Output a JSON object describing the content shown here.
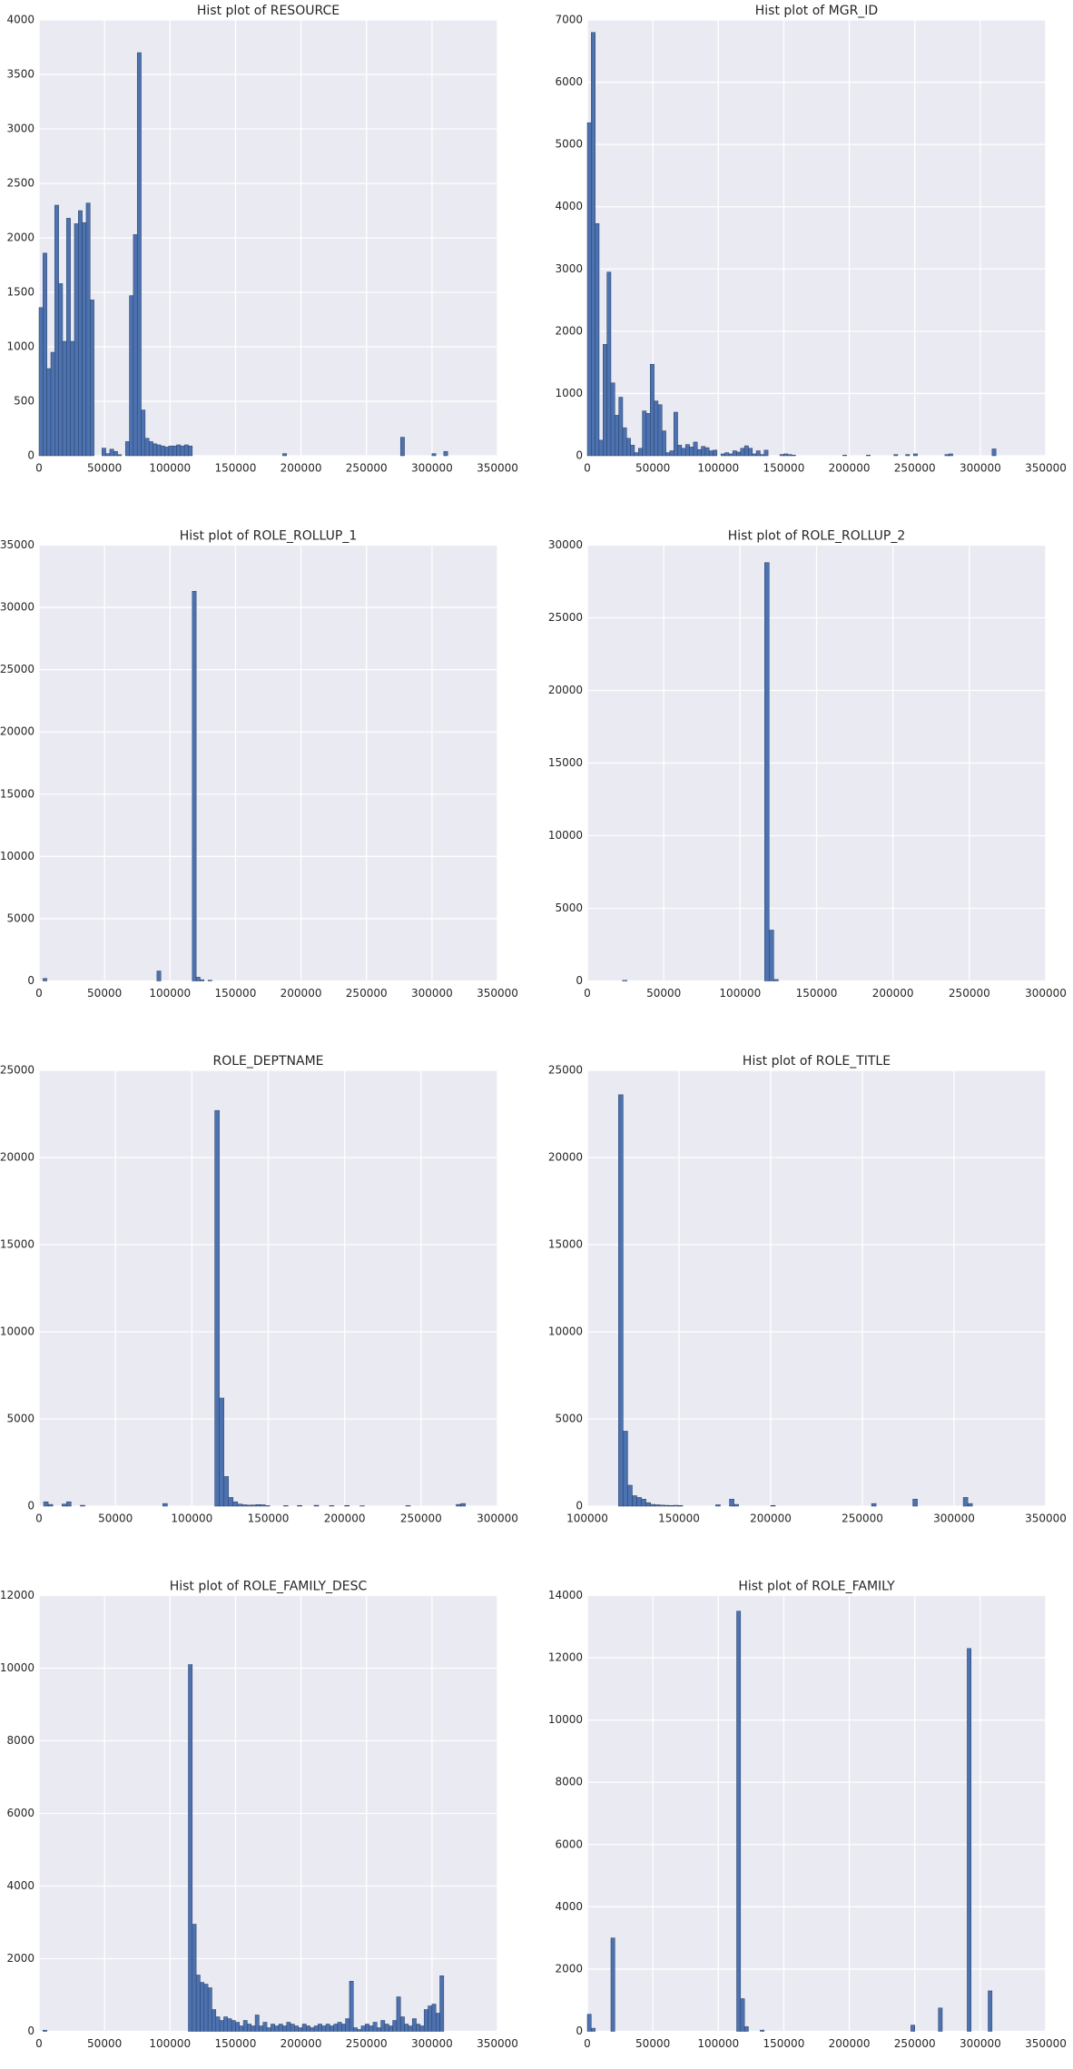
{
  "chart_data": [
    {
      "type": "histogram",
      "title": "Hist plot of RESOURCE",
      "color": "#4c72b0",
      "grid": true,
      "xlim": [
        0,
        350000
      ],
      "ylim": [
        0,
        4000
      ],
      "xticks": [
        0,
        50000,
        100000,
        150000,
        200000,
        250000,
        300000,
        350000
      ],
      "yticks": [
        0,
        500,
        1000,
        1500,
        2000,
        2500,
        3000,
        3500,
        4000
      ],
      "bins": [
        0,
        3000,
        6000,
        9000,
        12000,
        15000,
        18000,
        21000,
        24000,
        27000,
        30000,
        33000,
        36000,
        39000,
        42000,
        45000,
        48000,
        51000,
        54000,
        57000,
        60000,
        63000,
        66000,
        69000,
        72000,
        75000,
        78000,
        81000,
        84000,
        87000,
        90000,
        93000,
        96000,
        99000,
        102000,
        105000,
        108000,
        111000,
        114000,
        117000,
        186000,
        189000,
        276000,
        279000,
        300000,
        303000,
        309000,
        312000
      ],
      "values": [
        1360,
        1860,
        800,
        950,
        2300,
        1580,
        1050,
        2180,
        1050,
        2130,
        2250,
        2140,
        2320,
        1430,
        0,
        0,
        70,
        20,
        60,
        40,
        10,
        0,
        130,
        1470,
        2030,
        3700,
        420,
        160,
        130,
        110,
        100,
        90,
        80,
        90,
        90,
        100,
        90,
        100,
        90,
        0,
        20,
        0,
        170,
        0,
        20,
        0,
        40
      ]
    },
    {
      "type": "histogram",
      "title": "Hist plot of MGR_ID",
      "color": "#4c72b0",
      "grid": true,
      "xlim": [
        0,
        350000
      ],
      "ylim": [
        0,
        7000
      ],
      "xticks": [
        0,
        50000,
        100000,
        150000,
        200000,
        250000,
        300000,
        350000
      ],
      "yticks": [
        0,
        1000,
        2000,
        3000,
        4000,
        5000,
        6000,
        7000
      ],
      "bins": [
        0,
        3000,
        6000,
        9000,
        12000,
        15000,
        18000,
        21000,
        24000,
        27000,
        30000,
        33000,
        36000,
        39000,
        42000,
        45000,
        48000,
        51000,
        54000,
        57000,
        60000,
        63000,
        66000,
        69000,
        72000,
        75000,
        78000,
        81000,
        84000,
        87000,
        90000,
        93000,
        96000,
        99000,
        102000,
        105000,
        108000,
        111000,
        114000,
        117000,
        120000,
        123000,
        126000,
        129000,
        132000,
        135000,
        138000,
        147000,
        150000,
        153000,
        156000,
        159000,
        195000,
        198000,
        213000,
        216000,
        234000,
        237000,
        243000,
        246000,
        249000,
        252000,
        273000,
        276000,
        279000,
        309000,
        312000
      ],
      "values": [
        5350,
        6800,
        3730,
        250,
        1790,
        2950,
        1170,
        650,
        940,
        450,
        280,
        170,
        50,
        120,
        720,
        680,
        1470,
        880,
        820,
        400,
        50,
        80,
        700,
        170,
        120,
        180,
        140,
        220,
        100,
        150,
        130,
        80,
        90,
        0,
        30,
        50,
        30,
        80,
        60,
        120,
        160,
        120,
        30,
        80,
        20,
        90,
        0,
        20,
        30,
        20,
        10,
        0,
        10,
        0,
        10,
        0,
        20,
        0,
        20,
        0,
        30,
        0,
        20,
        30,
        0,
        110
      ]
    },
    {
      "type": "histogram",
      "title": "Hist plot of ROLE_ROLLUP_1",
      "color": "#4c72b0",
      "grid": true,
      "xlim": [
        0,
        350000
      ],
      "ylim": [
        0,
        35000
      ],
      "xticks": [
        0,
        50000,
        100000,
        150000,
        200000,
        250000,
        300000,
        350000
      ],
      "yticks": [
        0,
        5000,
        10000,
        15000,
        20000,
        25000,
        30000,
        35000
      ],
      "bins": [
        0,
        3000,
        6000,
        90000,
        93000,
        117000,
        120000,
        123000,
        126000,
        129000,
        132000,
        312000
      ],
      "values": [
        0,
        200,
        0,
        800,
        0,
        31300,
        300,
        100,
        0,
        60,
        0
      ]
    },
    {
      "type": "histogram",
      "title": "Hist plot of ROLE_ROLLUP_2",
      "color": "#4c72b0",
      "grid": true,
      "xlim": [
        0,
        300000
      ],
      "ylim": [
        0,
        30000
      ],
      "xticks": [
        0,
        50000,
        100000,
        150000,
        200000,
        250000,
        300000
      ],
      "yticks": [
        0,
        5000,
        10000,
        15000,
        20000,
        25000,
        30000
      ],
      "bins": [
        0,
        23000,
        26000,
        116000,
        119000,
        122000,
        125000,
        290000
      ],
      "values": [
        0,
        40,
        0,
        28800,
        3500,
        100,
        0
      ]
    },
    {
      "type": "histogram",
      "title": "ROLE_DEPTNAME",
      "color": "#4c72b0",
      "grid": true,
      "xlim": [
        0,
        300000
      ],
      "ylim": [
        0,
        25000
      ],
      "xticks": [
        0,
        50000,
        100000,
        150000,
        200000,
        250000,
        300000
      ],
      "yticks": [
        0,
        5000,
        10000,
        15000,
        20000,
        25000
      ],
      "bins": [
        0,
        3000,
        6000,
        9000,
        15000,
        18000,
        21000,
        27000,
        30000,
        81000,
        84000,
        115000,
        118000,
        121000,
        124000,
        127000,
        130000,
        133000,
        136000,
        139000,
        142000,
        145000,
        148000,
        151000,
        160000,
        163000,
        169000,
        172000,
        180000,
        183000,
        190000,
        193000,
        200000,
        203000,
        210000,
        213000,
        240000,
        243000,
        273000,
        276000,
        279000
      ],
      "values": [
        0,
        250,
        100,
        0,
        120,
        250,
        0,
        50,
        0,
        150,
        0,
        22700,
        6200,
        1700,
        500,
        250,
        120,
        80,
        60,
        70,
        90,
        80,
        30,
        0,
        30,
        0,
        40,
        0,
        50,
        0,
        30,
        0,
        40,
        0,
        20,
        0,
        30,
        0,
        100,
        150
      ]
    },
    {
      "type": "histogram",
      "title": "Hist plot of ROLE_TITLE",
      "color": "#4c72b0",
      "grid": true,
      "xlim": [
        100000,
        350000
      ],
      "ylim": [
        0,
        25000
      ],
      "xticks": [
        100000,
        150000,
        200000,
        250000,
        300000,
        350000
      ],
      "yticks": [
        0,
        5000,
        10000,
        15000,
        20000,
        25000
      ],
      "bins": [
        117000,
        119500,
        122000,
        124500,
        127000,
        129500,
        132000,
        134500,
        137000,
        139500,
        142000,
        144500,
        147000,
        149500,
        152000,
        170000,
        172500,
        177500,
        180000,
        182500,
        200000,
        202500,
        255000,
        257500,
        277500,
        280000,
        305000,
        307500,
        310000
      ],
      "values": [
        23600,
        4300,
        1200,
        600,
        500,
        400,
        200,
        100,
        80,
        60,
        50,
        40,
        50,
        40,
        0,
        80,
        0,
        400,
        100,
        0,
        40,
        0,
        150,
        0,
        400,
        0,
        500,
        150
      ]
    },
    {
      "type": "histogram",
      "title": "Hist plot of ROLE_FAMILY_DESC",
      "color": "#4c72b0",
      "grid": true,
      "xlim": [
        0,
        350000
      ],
      "ylim": [
        0,
        12000
      ],
      "xticks": [
        0,
        50000,
        100000,
        150000,
        200000,
        250000,
        300000,
        350000
      ],
      "yticks": [
        0,
        2000,
        4000,
        6000,
        8000,
        10000,
        12000
      ],
      "bins": [
        0,
        3000,
        6000,
        114000,
        117000,
        120000,
        123000,
        126000,
        129000,
        132000,
        135000,
        138000,
        141000,
        144000,
        147000,
        150000,
        153000,
        156000,
        159000,
        162000,
        165000,
        168000,
        171000,
        174000,
        177000,
        180000,
        183000,
        186000,
        189000,
        192000,
        195000,
        198000,
        201000,
        204000,
        207000,
        210000,
        213000,
        216000,
        219000,
        222000,
        225000,
        228000,
        231000,
        234000,
        237000,
        240000,
        243000,
        246000,
        249000,
        252000,
        255000,
        258000,
        261000,
        264000,
        267000,
        270000,
        273000,
        276000,
        279000,
        282000,
        285000,
        288000,
        291000,
        294000,
        297000,
        300000,
        303000,
        306000,
        309000
      ],
      "values": [
        0,
        30,
        0,
        10100,
        2950,
        1550,
        1350,
        1300,
        1200,
        600,
        400,
        300,
        400,
        350,
        300,
        250,
        150,
        300,
        200,
        150,
        450,
        150,
        250,
        100,
        200,
        150,
        200,
        150,
        250,
        200,
        150,
        100,
        200,
        150,
        100,
        150,
        200,
        150,
        200,
        150,
        200,
        250,
        200,
        350,
        1380,
        100,
        50,
        150,
        200,
        150,
        250,
        100,
        300,
        200,
        150,
        300,
        950,
        400,
        200,
        150,
        350,
        200,
        150,
        600,
        700,
        750,
        500,
        1530
      ]
    },
    {
      "type": "histogram",
      "title": "Hist plot of ROLE_FAMILY",
      "color": "#4c72b0",
      "grid": true,
      "xlim": [
        0,
        350000
      ],
      "ylim": [
        0,
        14000
      ],
      "xticks": [
        0,
        50000,
        100000,
        150000,
        200000,
        250000,
        300000,
        350000
      ],
      "yticks": [
        0,
        2000,
        4000,
        6000,
        8000,
        10000,
        12000,
        14000
      ],
      "bins": [
        0,
        3000,
        6000,
        9000,
        18000,
        21000,
        114000,
        117000,
        120000,
        123000,
        126000,
        132000,
        135000,
        247000,
        250000,
        268000,
        271000,
        290000,
        293000,
        306000,
        309000
      ],
      "values": [
        550,
        100,
        0,
        0,
        3000,
        0,
        13500,
        1050,
        150,
        0,
        0,
        40,
        0,
        200,
        0,
        750,
        0,
        12300,
        0,
        1300
      ]
    }
  ]
}
